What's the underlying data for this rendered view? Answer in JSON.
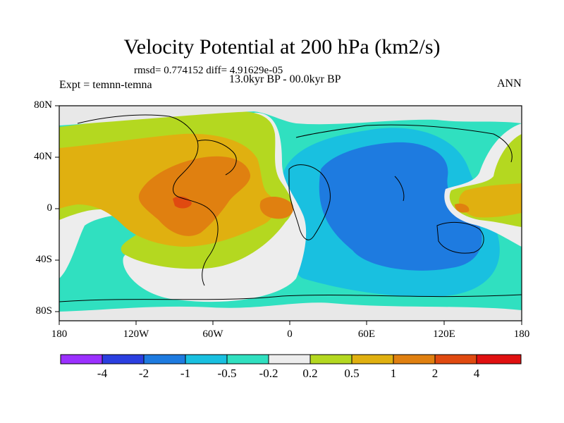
{
  "title": "Velocity Potential at 200 hPa (km2/s)",
  "stats": "rmsd= 0.774152 diff= 4.91629e-05",
  "period": "13.0kyr BP - 00.0kyr BP",
  "experiment": "Expt = temnn-temna",
  "season": "ANN",
  "map": {
    "y_ticks": [
      "80N",
      "40N",
      "0",
      "40S",
      "80S"
    ],
    "x_ticks": [
      "180",
      "120W",
      "60W",
      "0",
      "60E",
      "120E",
      "180"
    ],
    "land_color": "#E8E8E8"
  },
  "colorbar": {
    "labels": [
      "-4",
      "-2",
      "-1",
      "-0.5",
      "-0.2",
      "0.2",
      "0.5",
      "1",
      "2",
      "4"
    ],
    "colors": [
      "#9B30FF",
      "#2B3FE0",
      "#1E7BE0",
      "#19C0E0",
      "#30E0C0",
      "#EDEDED",
      "#B4D820",
      "#E0B010",
      "#E08010",
      "#E04A10",
      "#E01010"
    ]
  }
}
